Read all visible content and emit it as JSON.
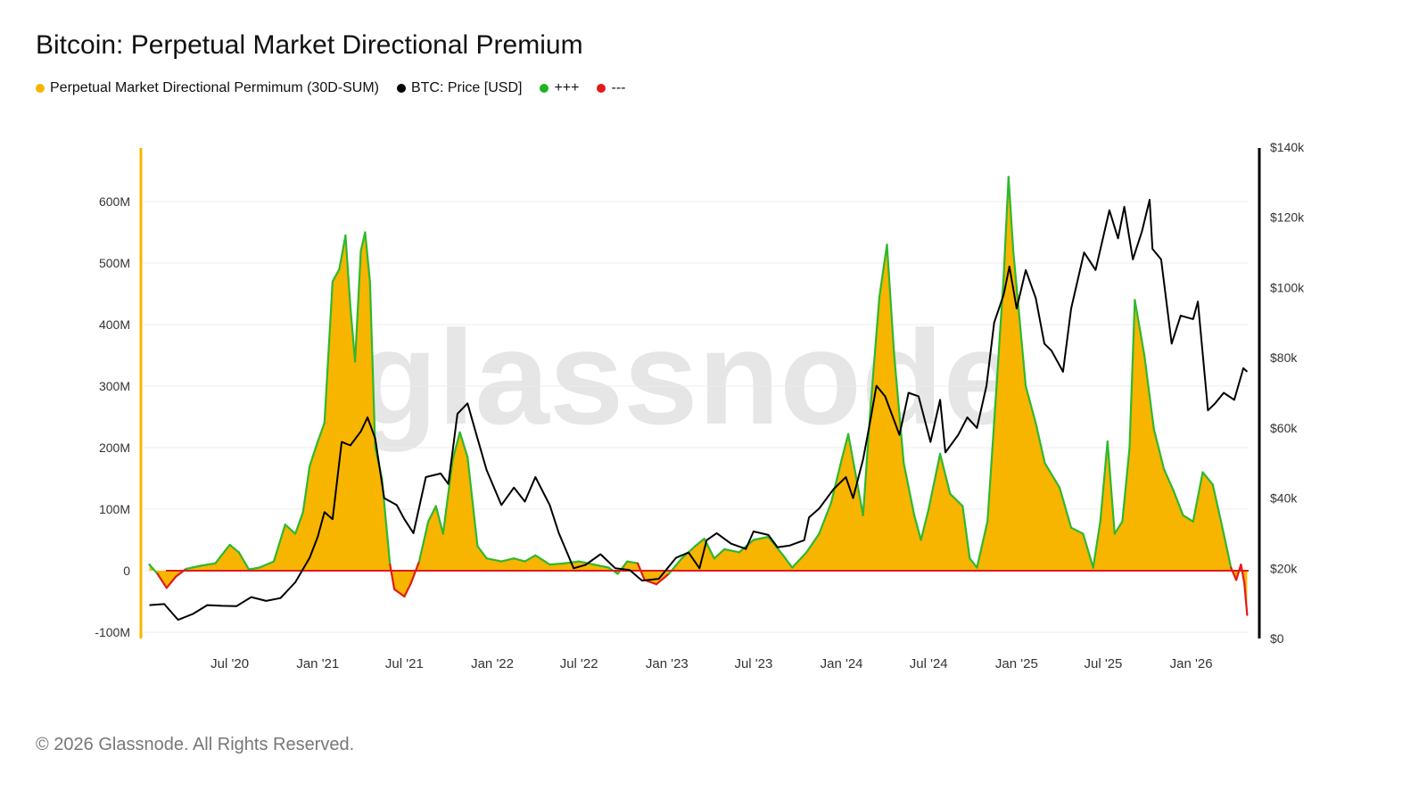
{
  "header": {
    "title": "Bitcoin: Perpetual Market Directional Premium"
  },
  "legend": [
    {
      "label": "Perpetual Market Directional Permimum (30D-SUM)",
      "color": "#f7b500"
    },
    {
      "label": "BTC: Price [USD]",
      "color": "#000000"
    },
    {
      "label": "+++",
      "color": "#1fb31f"
    },
    {
      "label": "---",
      "color": "#e01a1a"
    }
  ],
  "watermark": "glassnode",
  "footer": {
    "copyright": "© 2026 Glassnode. All Rights Reserved."
  },
  "colors": {
    "premium_fill": "#f7b500",
    "positive_line": "#2eb82e",
    "negative_line": "#e01a1a",
    "price_line": "#000000",
    "left_axis": "#f7b500",
    "right_axis": "#000000",
    "grid": "#ececec",
    "watermark": "#e6e6e6"
  },
  "chart_data": {
    "type": "area",
    "title": "Bitcoin: Perpetual Market Directional Premium",
    "x_ticks": [
      "Jul '20",
      "Jan '21",
      "Jul '21",
      "Jan '22",
      "Jul '22",
      "Jan '23",
      "Jul '23",
      "Jan '24",
      "Jul '24",
      "Jan '25",
      "Jul '25",
      "Jan '26"
    ],
    "x_range": [
      "2020-01",
      "2026-05"
    ],
    "y_left": {
      "ticks": [
        -100,
        0,
        100,
        200,
        300,
        400,
        500,
        600
      ],
      "tick_labels": [
        "-100M",
        "0",
        "100M",
        "200M",
        "300M",
        "400M",
        "500M",
        "600M"
      ],
      "range": [
        -110,
        690
      ],
      "unit": "M"
    },
    "y_right": {
      "ticks": [
        0,
        20,
        40,
        60,
        80,
        100,
        120,
        140
      ],
      "tick_labels": [
        "$0",
        "$20k",
        "$40k",
        "$60k",
        "$80k",
        "$100k",
        "$120k",
        "$140k"
      ],
      "range": [
        0,
        140
      ],
      "unit": "k USD"
    },
    "grid": true,
    "legend_position": "top-left",
    "series": [
      {
        "name": "Perpetual Market Directional Permimum (30D-SUM)",
        "axis": "left",
        "points": [
          [
            "2020-01-15",
            10
          ],
          [
            "2020-02-01",
            -5
          ],
          [
            "2020-02-20",
            -28
          ],
          [
            "2020-03-10",
            -10
          ],
          [
            "2020-04-01",
            3
          ],
          [
            "2020-05-01",
            8
          ],
          [
            "2020-06-01",
            12
          ],
          [
            "2020-07-01",
            42
          ],
          [
            "2020-07-20",
            30
          ],
          [
            "2020-08-10",
            2
          ],
          [
            "2020-09-01",
            5
          ],
          [
            "2020-10-01",
            15
          ],
          [
            "2020-10-25",
            75
          ],
          [
            "2020-11-15",
            60
          ],
          [
            "2020-12-01",
            95
          ],
          [
            "2020-12-15",
            170
          ],
          [
            "2021-01-01",
            210
          ],
          [
            "2021-01-15",
            240
          ],
          [
            "2021-02-01",
            470
          ],
          [
            "2021-02-15",
            490
          ],
          [
            "2021-02-28",
            545
          ],
          [
            "2021-03-10",
            430
          ],
          [
            "2021-03-20",
            340
          ],
          [
            "2021-04-01",
            520
          ],
          [
            "2021-04-10",
            550
          ],
          [
            "2021-04-20",
            470
          ],
          [
            "2021-05-01",
            200
          ],
          [
            "2021-05-15",
            150
          ],
          [
            "2021-06-01",
            10
          ],
          [
            "2021-06-10",
            -30
          ],
          [
            "2021-07-01",
            -42
          ],
          [
            "2021-07-15",
            -20
          ],
          [
            "2021-08-01",
            15
          ],
          [
            "2021-08-20",
            80
          ],
          [
            "2021-09-05",
            105
          ],
          [
            "2021-09-20",
            60
          ],
          [
            "2021-10-10",
            180
          ],
          [
            "2021-10-25",
            225
          ],
          [
            "2021-11-10",
            185
          ],
          [
            "2021-12-01",
            40
          ],
          [
            "2021-12-20",
            20
          ],
          [
            "2022-01-20",
            15
          ],
          [
            "2022-02-15",
            20
          ],
          [
            "2022-03-10",
            15
          ],
          [
            "2022-04-01",
            25
          ],
          [
            "2022-05-01",
            10
          ],
          [
            "2022-06-01",
            12
          ],
          [
            "2022-07-01",
            15
          ],
          [
            "2022-08-01",
            10
          ],
          [
            "2022-09-01",
            5
          ],
          [
            "2022-09-20",
            -5
          ],
          [
            "2022-10-10",
            15
          ],
          [
            "2022-11-01",
            12
          ],
          [
            "2022-11-15",
            -15
          ],
          [
            "2022-12-10",
            -22
          ],
          [
            "2023-01-05",
            -5
          ],
          [
            "2023-02-01",
            20
          ],
          [
            "2023-03-01",
            40
          ],
          [
            "2023-03-20",
            52
          ],
          [
            "2023-04-10",
            20
          ],
          [
            "2023-05-01",
            35
          ],
          [
            "2023-06-01",
            30
          ],
          [
            "2023-07-01",
            50
          ],
          [
            "2023-08-01",
            55
          ],
          [
            "2023-09-01",
            25
          ],
          [
            "2023-09-20",
            5
          ],
          [
            "2023-10-20",
            30
          ],
          [
            "2023-11-15",
            60
          ],
          [
            "2023-12-10",
            110
          ],
          [
            "2024-01-01",
            180
          ],
          [
            "2024-01-15",
            222
          ],
          [
            "2024-02-01",
            150
          ],
          [
            "2024-02-15",
            90
          ],
          [
            "2024-03-01",
            260
          ],
          [
            "2024-03-20",
            445
          ],
          [
            "2024-04-05",
            530
          ],
          [
            "2024-04-20",
            350
          ],
          [
            "2024-05-10",
            175
          ],
          [
            "2024-06-01",
            90
          ],
          [
            "2024-06-15",
            50
          ],
          [
            "2024-07-01",
            100
          ],
          [
            "2024-07-25",
            190
          ],
          [
            "2024-08-15",
            125
          ],
          [
            "2024-09-10",
            105
          ],
          [
            "2024-09-25",
            20
          ],
          [
            "2024-10-10",
            5
          ],
          [
            "2024-11-01",
            80
          ],
          [
            "2024-11-20",
            300
          ],
          [
            "2024-12-05",
            480
          ],
          [
            "2024-12-15",
            640
          ],
          [
            "2024-12-25",
            520
          ],
          [
            "2025-01-20",
            300
          ],
          [
            "2025-02-10",
            240
          ],
          [
            "2025-03-01",
            175
          ],
          [
            "2025-04-01",
            135
          ],
          [
            "2025-04-25",
            70
          ],
          [
            "2025-05-20",
            60
          ],
          [
            "2025-06-10",
            5
          ],
          [
            "2025-06-25",
            80
          ],
          [
            "2025-07-10",
            210
          ],
          [
            "2025-07-25",
            60
          ],
          [
            "2025-08-10",
            80
          ],
          [
            "2025-08-25",
            200
          ],
          [
            "2025-09-05",
            440
          ],
          [
            "2025-09-25",
            350
          ],
          [
            "2025-10-15",
            230
          ],
          [
            "2025-11-05",
            165
          ],
          [
            "2025-11-25",
            130
          ],
          [
            "2025-12-15",
            90
          ],
          [
            "2026-01-05",
            80
          ],
          [
            "2026-01-25",
            160
          ],
          [
            "2026-02-15",
            140
          ],
          [
            "2026-03-10",
            60
          ],
          [
            "2026-03-25",
            5
          ],
          [
            "2026-04-05",
            -15
          ],
          [
            "2026-04-15",
            10
          ],
          [
            "2026-04-22",
            -20
          ],
          [
            "2026-04-28",
            -72
          ]
        ]
      },
      {
        "name": "BTC: Price [USD]",
        "axis": "right",
        "points": [
          [
            "2020-01-15",
            9.5
          ],
          [
            "2020-02-15",
            9.8
          ],
          [
            "2020-03-15",
            5.3
          ],
          [
            "2020-04-15",
            7.0
          ],
          [
            "2020-05-15",
            9.5
          ],
          [
            "2020-06-15",
            9.3
          ],
          [
            "2020-07-15",
            9.2
          ],
          [
            "2020-08-15",
            11.8
          ],
          [
            "2020-09-15",
            10.7
          ],
          [
            "2020-10-15",
            11.5
          ],
          [
            "2020-11-15",
            16.0
          ],
          [
            "2020-12-15",
            23.0
          ],
          [
            "2021-01-01",
            29.0
          ],
          [
            "2021-01-15",
            36.0
          ],
          [
            "2021-02-01",
            34.0
          ],
          [
            "2021-02-20",
            56.0
          ],
          [
            "2021-03-10",
            55.0
          ],
          [
            "2021-04-01",
            59.0
          ],
          [
            "2021-04-15",
            63.0
          ],
          [
            "2021-05-01",
            57.0
          ],
          [
            "2021-05-20",
            40.0
          ],
          [
            "2021-06-15",
            38.0
          ],
          [
            "2021-07-01",
            34.0
          ],
          [
            "2021-07-20",
            30.0
          ],
          [
            "2021-08-15",
            46.0
          ],
          [
            "2021-09-15",
            47.0
          ],
          [
            "2021-10-01",
            44.0
          ],
          [
            "2021-10-20",
            64.0
          ],
          [
            "2021-11-10",
            67.0
          ],
          [
            "2021-12-01",
            57.0
          ],
          [
            "2021-12-20",
            48.0
          ],
          [
            "2022-01-20",
            38.0
          ],
          [
            "2022-02-15",
            43.0
          ],
          [
            "2022-03-10",
            39.0
          ],
          [
            "2022-04-01",
            46.0
          ],
          [
            "2022-05-01",
            38.0
          ],
          [
            "2022-05-20",
            30.0
          ],
          [
            "2022-06-20",
            20.0
          ],
          [
            "2022-07-15",
            21.0
          ],
          [
            "2022-08-15",
            24.0
          ],
          [
            "2022-09-15",
            20.0
          ],
          [
            "2022-10-15",
            19.5
          ],
          [
            "2022-11-10",
            16.5
          ],
          [
            "2022-12-15",
            17.0
          ],
          [
            "2023-01-20",
            23.0
          ],
          [
            "2023-02-15",
            24.5
          ],
          [
            "2023-03-10",
            20.0
          ],
          [
            "2023-03-25",
            28.0
          ],
          [
            "2023-04-15",
            30.0
          ],
          [
            "2023-05-15",
            27.0
          ],
          [
            "2023-06-15",
            25.5
          ],
          [
            "2023-07-01",
            30.5
          ],
          [
            "2023-08-01",
            29.5
          ],
          [
            "2023-08-20",
            26.0
          ],
          [
            "2023-09-15",
            26.5
          ],
          [
            "2023-10-15",
            28.0
          ],
          [
            "2023-10-25",
            34.5
          ],
          [
            "2023-11-15",
            37.0
          ],
          [
            "2023-12-15",
            42.5
          ],
          [
            "2024-01-10",
            46.0
          ],
          [
            "2024-01-25",
            40.0
          ],
          [
            "2024-02-15",
            51.0
          ],
          [
            "2024-03-01",
            62.0
          ],
          [
            "2024-03-14",
            72.0
          ],
          [
            "2024-04-01",
            69.0
          ],
          [
            "2024-05-01",
            58.0
          ],
          [
            "2024-05-20",
            70.0
          ],
          [
            "2024-06-10",
            69.0
          ],
          [
            "2024-07-05",
            56.0
          ],
          [
            "2024-07-25",
            68.0
          ],
          [
            "2024-08-05",
            53.0
          ],
          [
            "2024-09-01",
            58.0
          ],
          [
            "2024-09-20",
            63.0
          ],
          [
            "2024-10-10",
            60.0
          ],
          [
            "2024-10-30",
            72.0
          ],
          [
            "2024-11-15",
            90.0
          ],
          [
            "2024-12-05",
            98.0
          ],
          [
            "2024-12-17",
            106.0
          ],
          [
            "2025-01-01",
            94.0
          ],
          [
            "2025-01-20",
            105.0
          ],
          [
            "2025-02-10",
            97.0
          ],
          [
            "2025-02-28",
            84.0
          ],
          [
            "2025-03-15",
            82.0
          ],
          [
            "2025-04-08",
            76.0
          ],
          [
            "2025-04-25",
            94.0
          ],
          [
            "2025-05-22",
            110.0
          ],
          [
            "2025-06-15",
            105.0
          ],
          [
            "2025-07-14",
            122.0
          ],
          [
            "2025-08-01",
            114.0
          ],
          [
            "2025-08-14",
            123.0
          ],
          [
            "2025-09-01",
            108.0
          ],
          [
            "2025-09-20",
            116.0
          ],
          [
            "2025-10-06",
            125.0
          ],
          [
            "2025-10-12",
            111.0
          ],
          [
            "2025-10-30",
            108.0
          ],
          [
            "2025-11-21",
            84.0
          ],
          [
            "2025-12-10",
            92.0
          ],
          [
            "2026-01-05",
            91.0
          ],
          [
            "2026-01-15",
            96.0
          ],
          [
            "2026-02-05",
            65.0
          ],
          [
            "2026-02-20",
            67.0
          ],
          [
            "2026-03-10",
            70.0
          ],
          [
            "2026-04-01",
            68.0
          ],
          [
            "2026-04-20",
            77.0
          ],
          [
            "2026-04-28",
            76.0
          ]
        ]
      }
    ]
  }
}
